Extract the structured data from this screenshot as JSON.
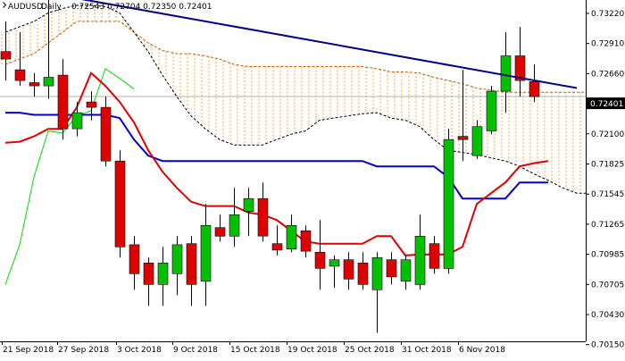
{
  "header": {
    "symbol": "AUDUSD",
    "timeframe": "Daily",
    "ohlc": "0.72543 0.72704 0.72350 0.72401"
  },
  "colors": {
    "bull": "#00c000",
    "bear": "#e00000",
    "tenkan": "#e00000",
    "kijun": "#0000c8",
    "chikou": "#00dd00",
    "senkou_a": "#c06000",
    "senkou_b": "#000000",
    "cloud_hatch": "#f0a040",
    "trendline": "#000080",
    "current_line": "#b0b0b0",
    "price_label_bg": "#000000"
  },
  "chart_data": {
    "type": "candlestick",
    "instrument": "AUDUSD",
    "timeframe": "Daily",
    "x_tick_labels": [
      "21 Sep 2018",
      "27 Sep 2018",
      "3 Oct 2018",
      "9 Oct 2018",
      "15 Oct 2018",
      "19 Oct 2018",
      "25 Oct 2018",
      "31 Oct 2018",
      "6 Nov 2018"
    ],
    "y_tick_labels": [
      "0.73220",
      "0.72910",
      "0.72660",
      "0.72401",
      "0.72100",
      "0.71825",
      "0.71545",
      "0.71265",
      "0.70985",
      "0.70705",
      "0.70430",
      "0.70150"
    ],
    "ylim": [
      0.7012,
      0.733
    ],
    "current_price": 0.72401,
    "candles": [
      {
        "date": "2018-09-17",
        "o": 0.7282,
        "h": 0.731,
        "l": 0.7255,
        "c": 0.7275
      },
      {
        "date": "2018-09-18",
        "o": 0.7265,
        "h": 0.73,
        "l": 0.725,
        "c": 0.7255
      },
      {
        "date": "2018-09-19",
        "o": 0.7253,
        "h": 0.7262,
        "l": 0.724,
        "c": 0.725
      },
      {
        "date": "2018-09-20",
        "o": 0.725,
        "h": 0.733,
        "l": 0.7238,
        "c": 0.7258
      },
      {
        "date": "2018-09-21",
        "o": 0.726,
        "h": 0.7275,
        "l": 0.72,
        "c": 0.721
      },
      {
        "date": "2018-09-24",
        "o": 0.721,
        "h": 0.7235,
        "l": 0.7203,
        "c": 0.7225
      },
      {
        "date": "2018-09-25",
        "o": 0.7235,
        "h": 0.7245,
        "l": 0.7218,
        "c": 0.723
      },
      {
        "date": "2018-09-26",
        "o": 0.723,
        "h": 0.724,
        "l": 0.7175,
        "c": 0.718
      },
      {
        "date": "2018-09-27",
        "o": 0.718,
        "h": 0.719,
        "l": 0.709,
        "c": 0.71
      },
      {
        "date": "2018-09-28",
        "o": 0.7102,
        "h": 0.711,
        "l": 0.706,
        "c": 0.7075
      },
      {
        "date": "2018-10-01",
        "o": 0.7085,
        "h": 0.709,
        "l": 0.7045,
        "c": 0.7065
      },
      {
        "date": "2018-10-02",
        "o": 0.7065,
        "h": 0.71,
        "l": 0.7045,
        "c": 0.7085
      },
      {
        "date": "2018-10-03",
        "o": 0.7075,
        "h": 0.711,
        "l": 0.7055,
        "c": 0.7102
      },
      {
        "date": "2018-10-04",
        "o": 0.7103,
        "h": 0.711,
        "l": 0.7045,
        "c": 0.7065
      },
      {
        "date": "2018-10-05",
        "o": 0.7068,
        "h": 0.714,
        "l": 0.7045,
        "c": 0.712
      },
      {
        "date": "2018-10-08",
        "o": 0.7118,
        "h": 0.713,
        "l": 0.7105,
        "c": 0.711
      },
      {
        "date": "2018-10-09",
        "o": 0.711,
        "h": 0.7155,
        "l": 0.71,
        "c": 0.713
      },
      {
        "date": "2018-10-10",
        "o": 0.7133,
        "h": 0.7155,
        "l": 0.711,
        "c": 0.7145
      },
      {
        "date": "2018-10-11",
        "o": 0.7145,
        "h": 0.716,
        "l": 0.7105,
        "c": 0.711
      },
      {
        "date": "2018-10-12",
        "o": 0.7103,
        "h": 0.712,
        "l": 0.7092,
        "c": 0.7097
      },
      {
        "date": "2018-10-15",
        "o": 0.7098,
        "h": 0.713,
        "l": 0.7095,
        "c": 0.712
      },
      {
        "date": "2018-10-16",
        "o": 0.7115,
        "h": 0.712,
        "l": 0.709,
        "c": 0.7096
      },
      {
        "date": "2018-10-17",
        "o": 0.7095,
        "h": 0.7125,
        "l": 0.706,
        "c": 0.708
      },
      {
        "date": "2018-10-18",
        "o": 0.7082,
        "h": 0.7092,
        "l": 0.7062,
        "c": 0.7088
      },
      {
        "date": "2018-10-19",
        "o": 0.7088,
        "h": 0.7095,
        "l": 0.706,
        "c": 0.707
      },
      {
        "date": "2018-10-22",
        "o": 0.7085,
        "h": 0.7095,
        "l": 0.706,
        "c": 0.7065
      },
      {
        "date": "2018-10-23",
        "o": 0.706,
        "h": 0.7095,
        "l": 0.702,
        "c": 0.709
      },
      {
        "date": "2018-10-24",
        "o": 0.7088,
        "h": 0.7095,
        "l": 0.7065,
        "c": 0.7072
      },
      {
        "date": "2018-10-25",
        "o": 0.7068,
        "h": 0.7092,
        "l": 0.706,
        "c": 0.7088
      },
      {
        "date": "2018-10-26",
        "o": 0.7065,
        "h": 0.713,
        "l": 0.706,
        "c": 0.711
      },
      {
        "date": "2018-10-29",
        "o": 0.7103,
        "h": 0.711,
        "l": 0.7075,
        "c": 0.708
      },
      {
        "date": "2018-10-30",
        "o": 0.708,
        "h": 0.721,
        "l": 0.7075,
        "c": 0.72
      },
      {
        "date": "2018-10-31",
        "o": 0.7203,
        "h": 0.7265,
        "l": 0.718,
        "c": 0.72
      },
      {
        "date": "2018-11-01",
        "o": 0.7185,
        "h": 0.7218,
        "l": 0.7182,
        "c": 0.7212
      },
      {
        "date": "2018-11-02",
        "o": 0.7208,
        "h": 0.725,
        "l": 0.7205,
        "c": 0.7245
      },
      {
        "date": "2018-11-05",
        "o": 0.7245,
        "h": 0.73,
        "l": 0.7225,
        "c": 0.7278
      },
      {
        "date": "2018-11-06",
        "o": 0.7278,
        "h": 0.7305,
        "l": 0.724,
        "c": 0.7255
      },
      {
        "date": "2018-11-07",
        "o": 0.7254,
        "h": 0.727,
        "l": 0.7235,
        "c": 0.724
      }
    ],
    "ichimoku": {
      "tenkan": [
        0.7197,
        0.7198,
        0.7203,
        0.721,
        0.721,
        0.723,
        0.7262,
        0.725,
        0.7235,
        0.7216,
        0.719,
        0.717,
        0.7155,
        0.7142,
        0.7138,
        0.7138,
        0.7138,
        0.7132,
        0.713,
        0.7125,
        0.7115,
        0.7105,
        0.7103,
        0.7103,
        0.7103,
        0.7103,
        0.711,
        0.711,
        0.7092,
        0.7093,
        0.7093,
        0.7093,
        0.71,
        0.714,
        0.715,
        0.716,
        0.7175,
        0.7178,
        0.718
      ],
      "kijun": [
        0.7225,
        0.7225,
        0.7223,
        0.7223,
        0.7223,
        0.7223,
        0.7223,
        0.7223,
        0.722,
        0.72,
        0.7185,
        0.718,
        0.718,
        0.718,
        0.718,
        0.718,
        0.718,
        0.718,
        0.718,
        0.718,
        0.718,
        0.718,
        0.718,
        0.718,
        0.718,
        0.718,
        0.7175,
        0.7175,
        0.7175,
        0.7175,
        0.7175,
        0.7165,
        0.7145,
        0.7145,
        0.7145,
        0.7145,
        0.716,
        0.716,
        0.716
      ],
      "chikou": [
        0.7065,
        0.7102,
        0.7165,
        0.7208,
        0.7206,
        0.7222,
        0.7227,
        0.7266,
        0.7257,
        0.7247
      ],
      "senkou_a": [
        0.727,
        0.7275,
        0.728,
        0.729,
        0.73,
        0.731,
        0.731,
        0.731,
        0.731,
        0.73,
        0.729,
        0.7283,
        0.728,
        0.728,
        0.7278,
        0.7275,
        0.727,
        0.7268,
        0.7268,
        0.7268,
        0.7268,
        0.7268,
        0.7268,
        0.7268,
        0.7268,
        0.7268,
        0.7266,
        0.7263,
        0.7263,
        0.7262,
        0.7258,
        0.7255,
        0.7252,
        0.7248,
        0.7246,
        0.7244,
        0.7244,
        0.7244,
        0.7244,
        0.7244,
        0.7244,
        0.7244,
        0.7244,
        0.7244
      ],
      "senkou_b": [
        0.73,
        0.7305,
        0.731,
        0.7318,
        0.7322,
        0.7325,
        0.7325,
        0.7324,
        0.7318,
        0.73,
        0.7282,
        0.726,
        0.724,
        0.7222,
        0.721,
        0.72,
        0.7195,
        0.7195,
        0.7195,
        0.72,
        0.7205,
        0.7208,
        0.7218,
        0.722,
        0.7222,
        0.7224,
        0.7225,
        0.722,
        0.7218,
        0.7212,
        0.72,
        0.719,
        0.7188,
        0.7186,
        0.7183,
        0.718,
        0.7175,
        0.7168,
        0.7162,
        0.7155,
        0.715,
        0.715,
        0.715,
        0.715
      ]
    },
    "trendline": [
      {
        "date": "2018-09-21",
        "value": 0.7334
      },
      {
        "date": "2018-11-12",
        "value": 0.7248
      }
    ]
  }
}
